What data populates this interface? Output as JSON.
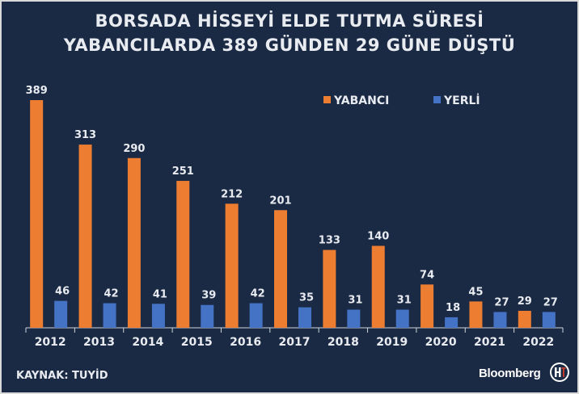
{
  "title_line1": "BORSADA HİSSEYİ ELDE TUTMA SÜRESİ",
  "title_line2": "YABANCILARDA 389 GÜNDEN 29 GÜNE DÜŞTÜ",
  "source": "KAYNAK: TUYİD",
  "brand": "Bloomberg",
  "colors": {
    "background": "#1b2a44",
    "yabanci": "#ed7d31",
    "yerli": "#4472c4",
    "text": "#e8ebf0"
  },
  "chart_data": {
    "type": "bar",
    "categories": [
      "2012",
      "2013",
      "2014",
      "2015",
      "2016",
      "2017",
      "2018",
      "2019",
      "2020",
      "2021",
      "2022"
    ],
    "series": [
      {
        "name": "YABANCI",
        "values": [
          389,
          313,
          290,
          251,
          212,
          201,
          133,
          140,
          74,
          45,
          29
        ]
      },
      {
        "name": "YERLİ",
        "values": [
          46,
          42,
          41,
          39,
          42,
          35,
          31,
          31,
          18,
          27,
          27
        ]
      }
    ],
    "ylim": [
      0,
      400
    ],
    "grid": false,
    "legend": "top-right",
    "data_labels": true
  }
}
